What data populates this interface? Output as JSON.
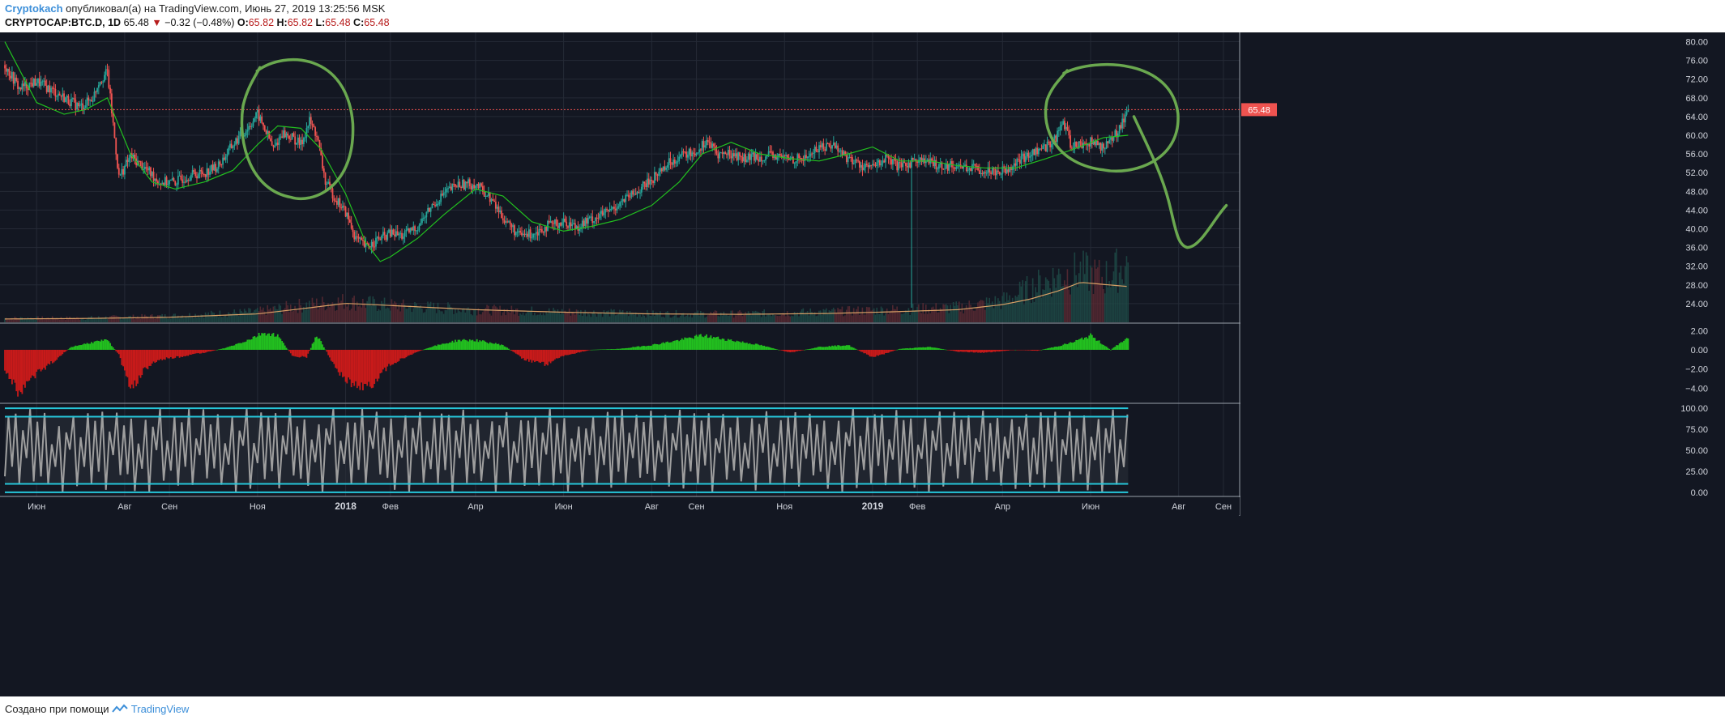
{
  "header": {
    "author": "Cryptokach",
    "published_text": "опубликовал(а) на TradingView.com, Июнь 27, 2019 13:25:56 MSK",
    "symbol": "CRYPTOCAP:BTC.D, 1D",
    "last": "65.48",
    "change": "−0.32 (−0.48%)",
    "o_label": "O:",
    "o": "65.82",
    "h_label": "H:",
    "h": "65.82",
    "l_label": "L:",
    "l": "65.48",
    "c_label": "C:",
    "c": "65.48"
  },
  "footer": {
    "prefix": "Создано при помощи",
    "brand": "TradingView"
  },
  "colors": {
    "background": "#131722",
    "up": "#26a69a",
    "down": "#ef5350",
    "ma": "#22c01f",
    "volume_ma": "#d9a066",
    "osc_pos": "#22c01f",
    "osc_neg": "#c81a1a",
    "stoch": "#9e9e9e",
    "bands": "#26c6da",
    "annotation": "#6aa84f",
    "price_tag": "#ef5350"
  },
  "chart_data": [
    {
      "type": "line",
      "subtype": "candlestick",
      "name": "main",
      "y_ticks": [
        "80.00",
        "76.00",
        "72.00",
        "68.00",
        "64.00",
        "60.00",
        "56.00",
        "52.00",
        "48.00",
        "44.00",
        "40.00",
        "36.00",
        "32.00",
        "28.00",
        "24.00"
      ],
      "ylim": [
        20.0,
        82.0
      ],
      "last_price_label": "65.48",
      "x_ticks": [
        "Июн",
        "Авг",
        "Сен",
        "Ноя",
        "2018",
        "Фев",
        "Апр",
        "Июн",
        "Авг",
        "Сен",
        "Ноя",
        "2019",
        "Фев",
        "Апр",
        "Июн",
        "Авг",
        "Сен"
      ],
      "x_tick_dates": [
        "2017-06-01",
        "2017-08-01",
        "2017-09-01",
        "2017-11-01",
        "2018-01-01",
        "2018-02-01",
        "2018-04-01",
        "2018-06-01",
        "2018-08-01",
        "2018-09-01",
        "2018-11-01",
        "2019-01-01",
        "2019-02-01",
        "2019-04-01",
        "2019-06-01",
        "2019-08-01",
        "2019-09-01"
      ],
      "xlim": [
        "2017-05-10",
        "2019-09-10"
      ],
      "price_series": {
        "dates": [
          "2017-05-10",
          "2017-05-20",
          "2017-06-01",
          "2017-06-15",
          "2017-07-01",
          "2017-07-10",
          "2017-07-14",
          "2017-07-20",
          "2017-07-28",
          "2017-08-05",
          "2017-08-15",
          "2017-08-25",
          "2017-09-05",
          "2017-09-15",
          "2017-09-25",
          "2017-10-05",
          "2017-10-15",
          "2017-10-25",
          "2017-11-01",
          "2017-11-08",
          "2017-11-12",
          "2017-11-18",
          "2017-11-25",
          "2017-12-01",
          "2017-12-07",
          "2017-12-12",
          "2017-12-18",
          "2017-12-25",
          "2018-01-01",
          "2018-01-08",
          "2018-01-15",
          "2018-01-22",
          "2018-02-01",
          "2018-02-10",
          "2018-02-20",
          "2018-03-01",
          "2018-03-10",
          "2018-03-20",
          "2018-04-01",
          "2018-04-10",
          "2018-04-20",
          "2018-05-01",
          "2018-05-10",
          "2018-05-20",
          "2018-06-01",
          "2018-06-10",
          "2018-06-20",
          "2018-07-01",
          "2018-07-10",
          "2018-07-20",
          "2018-08-01",
          "2018-08-10",
          "2018-08-20",
          "2018-09-01",
          "2018-09-08",
          "2018-09-15",
          "2018-09-25",
          "2018-10-05",
          "2018-10-15",
          "2018-10-25",
          "2018-11-05",
          "2018-11-15",
          "2018-11-25",
          "2018-12-05",
          "2018-12-15",
          "2018-12-25",
          "2019-01-01",
          "2019-01-10",
          "2019-01-20",
          "2019-02-01",
          "2019-02-10",
          "2019-02-20",
          "2019-03-01",
          "2019-03-10",
          "2019-03-20",
          "2019-04-01",
          "2019-04-10",
          "2019-04-20",
          "2019-05-01",
          "2019-05-08",
          "2019-05-13",
          "2019-05-18",
          "2019-05-25",
          "2019-06-01",
          "2019-06-10",
          "2019-06-18",
          "2019-06-27"
        ],
        "close": [
          75.0,
          70.0,
          71.5,
          69.0,
          66.0,
          68.0,
          71.5,
          73.5,
          51.0,
          55.5,
          53.0,
          50.0,
          50.0,
          51.5,
          52.0,
          53.5,
          58.0,
          61.5,
          64.5,
          60.0,
          57.0,
          60.5,
          59.5,
          58.0,
          63.0,
          60.0,
          50.0,
          46.5,
          43.5,
          38.0,
          36.0,
          37.5,
          39.0,
          38.5,
          40.5,
          44.5,
          47.5,
          49.5,
          49.5,
          47.0,
          42.5,
          38.5,
          39.0,
          40.5,
          41.5,
          40.5,
          42.0,
          43.5,
          45.5,
          47.5,
          50.5,
          53.5,
          55.5,
          56.5,
          59.0,
          56.0,
          56.0,
          55.0,
          55.5,
          55.5,
          55.0,
          55.0,
          57.5,
          58.0,
          55.0,
          53.5,
          53.0,
          55.0,
          53.0,
          55.0,
          54.0,
          53.5,
          53.5,
          53.0,
          52.5,
          52.5,
          54.0,
          56.0,
          57.5,
          59.5,
          63.0,
          58.0,
          58.0,
          58.5,
          57.5,
          60.0,
          65.48
        ]
      },
      "moving_average": {
        "dates": [
          "2017-05-10",
          "2017-06-01",
          "2017-06-20",
          "2017-07-05",
          "2017-07-20",
          "2017-08-05",
          "2017-08-20",
          "2017-09-05",
          "2017-09-25",
          "2017-10-15",
          "2017-11-01",
          "2017-11-15",
          "2017-12-01",
          "2017-12-15",
          "2018-01-01",
          "2018-01-15",
          "2018-01-25",
          "2018-02-01",
          "2018-02-20",
          "2018-03-10",
          "2018-04-01",
          "2018-04-20",
          "2018-05-10",
          "2018-06-01",
          "2018-06-20",
          "2018-07-10",
          "2018-08-01",
          "2018-08-20",
          "2018-09-05",
          "2018-09-25",
          "2018-10-15",
          "2018-11-05",
          "2018-11-25",
          "2018-12-15",
          "2019-01-01",
          "2019-01-20",
          "2019-02-10",
          "2019-03-01",
          "2019-03-20",
          "2019-04-10",
          "2019-05-01",
          "2019-05-20",
          "2019-06-10",
          "2019-06-27"
        ],
        "values": [
          80.0,
          67.0,
          64.5,
          65.5,
          68.0,
          56.0,
          50.0,
          48.5,
          50.0,
          52.5,
          58.0,
          62.0,
          61.5,
          57.0,
          47.5,
          37.0,
          33.0,
          34.0,
          38.0,
          43.0,
          48.5,
          47.0,
          41.5,
          39.5,
          40.5,
          42.0,
          45.0,
          50.0,
          56.0,
          58.5,
          56.0,
          55.0,
          54.5,
          56.0,
          57.5,
          54.5,
          54.5,
          53.5,
          53.0,
          53.0,
          55.0,
          57.0,
          59.5,
          60.0
        ]
      },
      "volume": {
        "dates": [
          "2017-05-10",
          "2017-07-01",
          "2017-09-01",
          "2017-11-01",
          "2017-12-01",
          "2018-01-01",
          "2018-02-01",
          "2018-04-01",
          "2018-06-01",
          "2018-08-01",
          "2018-10-01",
          "2018-12-01",
          "2019-01-15",
          "2019-03-01",
          "2019-04-01",
          "2019-04-20",
          "2019-05-10",
          "2019-05-25",
          "2019-06-10",
          "2019-06-27"
        ],
        "values": [
          1.0,
          1.0,
          1.5,
          2.5,
          4.0,
          5.0,
          4.0,
          3.0,
          2.5,
          2.0,
          2.0,
          2.5,
          3.0,
          3.5,
          5.0,
          8.0,
          11.0,
          12.0,
          10.5,
          14.0
        ]
      },
      "volume_ma": {
        "dates": [
          "2017-05-10",
          "2017-07-01",
          "2017-09-01",
          "2017-11-01",
          "2017-12-01",
          "2018-01-01",
          "2018-02-01",
          "2018-04-01",
          "2018-06-01",
          "2018-08-01",
          "2018-10-01",
          "2018-12-01",
          "2019-01-15",
          "2019-03-01",
          "2019-04-01",
          "2019-04-20",
          "2019-05-10",
          "2019-05-25",
          "2019-06-10",
          "2019-06-27"
        ],
        "values": [
          0.8,
          0.9,
          1.2,
          2.0,
          3.2,
          4.5,
          4.0,
          3.0,
          2.4,
          2.0,
          1.9,
          2.1,
          2.5,
          3.0,
          4.2,
          5.5,
          7.5,
          9.5,
          9.0,
          8.5
        ]
      }
    },
    {
      "type": "bar",
      "name": "oscillator",
      "y_ticks": [
        "2.00",
        "0.00",
        "−2.00",
        "−4.00"
      ],
      "ylim": [
        -5.5,
        2.7
      ],
      "dates": [
        "2017-05-10",
        "2017-05-20",
        "2017-05-28",
        "2017-06-10",
        "2017-06-25",
        "2017-07-10",
        "2017-07-20",
        "2017-07-28",
        "2017-08-05",
        "2017-08-15",
        "2017-08-25",
        "2017-09-05",
        "2017-09-25",
        "2017-10-10",
        "2017-10-25",
        "2017-11-05",
        "2017-11-15",
        "2017-11-25",
        "2017-12-05",
        "2017-12-12",
        "2017-12-20",
        "2017-12-28",
        "2018-01-10",
        "2018-01-20",
        "2018-02-01",
        "2018-02-15",
        "2018-03-01",
        "2018-03-20",
        "2018-04-01",
        "2018-04-20",
        "2018-05-05",
        "2018-05-20",
        "2018-06-01",
        "2018-06-20",
        "2018-07-10",
        "2018-08-01",
        "2018-08-20",
        "2018-09-05",
        "2018-09-25",
        "2018-10-15",
        "2018-11-05",
        "2018-11-25",
        "2018-12-15",
        "2019-01-01",
        "2019-01-20",
        "2019-02-10",
        "2019-03-01",
        "2019-03-20",
        "2019-04-10",
        "2019-04-25",
        "2019-05-10",
        "2019-05-20",
        "2019-06-01",
        "2019-06-15",
        "2019-06-27"
      ],
      "values": [
        -2.0,
        -4.5,
        -3.0,
        -1.5,
        0.3,
        0.8,
        1.0,
        -0.5,
        -4.2,
        -2.0,
        -1.0,
        -0.8,
        -0.3,
        0.2,
        1.0,
        1.8,
        1.5,
        -0.6,
        -0.8,
        1.6,
        -0.5,
        -2.5,
        -4.0,
        -3.5,
        -1.5,
        -0.5,
        0.3,
        1.0,
        1.0,
        0.5,
        -1.0,
        -1.5,
        -0.6,
        0.0,
        0.1,
        0.5,
        1.0,
        1.5,
        1.0,
        0.5,
        -0.3,
        0.3,
        0.5,
        -0.8,
        0.1,
        0.3,
        -0.2,
        -0.3,
        0.0,
        -0.1,
        0.4,
        0.8,
        1.5,
        0.0,
        1.3
      ]
    },
    {
      "type": "line",
      "name": "stochastic",
      "y_ticks": [
        "100.00",
        "75.00",
        "50.00",
        "25.00",
        "0.00"
      ],
      "ylim": [
        -5,
        105
      ],
      "bands": [
        0,
        10,
        90,
        100
      ],
      "pattern_values": [
        12,
        88,
        30,
        95,
        5,
        70,
        45,
        98,
        15,
        80,
        22,
        92,
        8,
        60,
        35,
        85,
        2,
        75,
        50,
        97,
        10,
        65,
        28,
        90
      ]
    }
  ]
}
